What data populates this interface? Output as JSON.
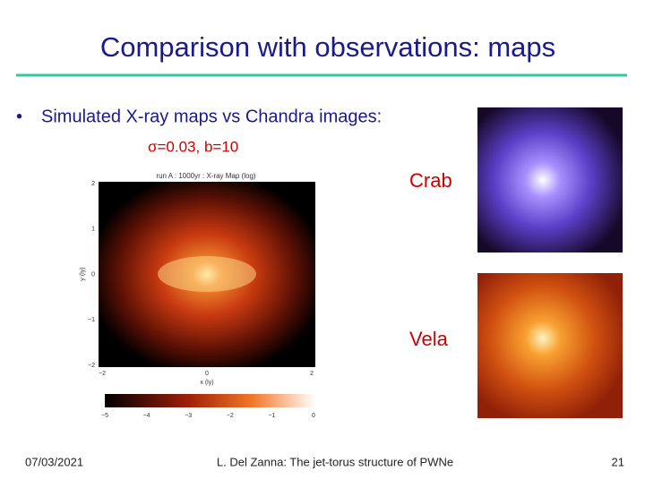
{
  "header": {
    "title": "Comparison with observations: maps"
  },
  "body": {
    "bullet": "Simulated X-ray maps vs Chandra images:",
    "sim_label": "σ=0.03, b=10",
    "figure": {
      "title": "run A : 1000yr : X-ray Map (log)",
      "y_label": "y (ly)",
      "x_label": "x (ly)",
      "y_ticks": [
        "2",
        "1",
        "0",
        "−1",
        "−2"
      ],
      "x_ticks": [
        "−2",
        "0",
        "2"
      ],
      "colorbar_ticks": [
        "−5",
        "−4",
        "−3",
        "−2",
        "−1",
        "0"
      ]
    },
    "crab_label": "Crab",
    "vela_label": "Vela"
  },
  "footer": {
    "date": "07/03/2021",
    "center": "L. Del Zanna: The jet-torus structure of PWNe",
    "page": "21"
  }
}
